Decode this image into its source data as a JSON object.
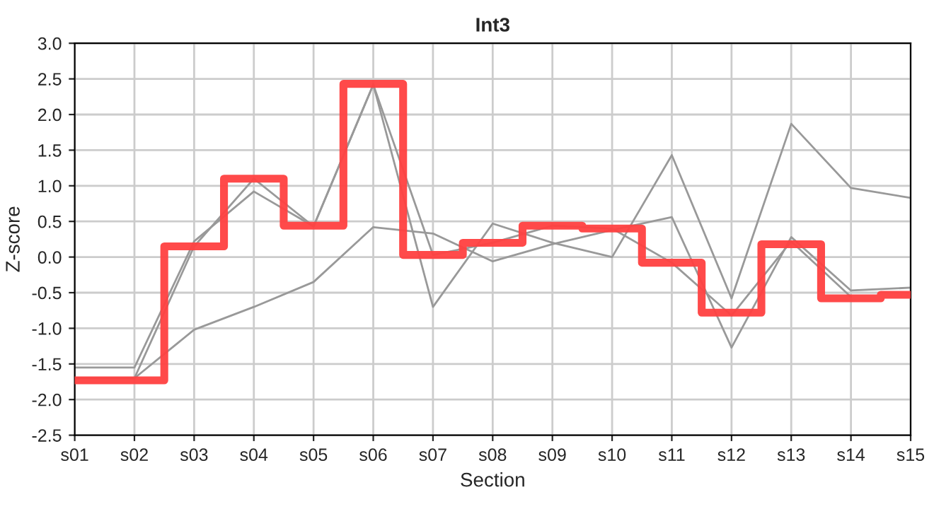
{
  "chart_data": {
    "type": "line",
    "title": "Int3",
    "xlabel": "Section",
    "ylabel": "Z-score",
    "categories": [
      "s01",
      "s02",
      "s03",
      "s04",
      "s05",
      "s06",
      "s07",
      "s08",
      "s09",
      "s10",
      "s11",
      "s12",
      "s13",
      "s14",
      "s15"
    ],
    "series": [
      {
        "color": "#999999",
        "values": [
          -1.7,
          -1.7,
          -1.02,
          -0.7,
          -0.35,
          0.42,
          0.33,
          -0.06,
          0.18,
          0.38,
          0.56,
          -1.27,
          0.28,
          -0.47,
          -0.43
        ]
      },
      {
        "color": "#999999",
        "values": [
          -1.55,
          -1.55,
          0.22,
          0.92,
          0.43,
          2.42,
          -0.7,
          0.47,
          0.2,
          0.0,
          1.43,
          -0.58,
          1.87,
          0.97,
          0.83
        ]
      },
      {
        "color": "#999999",
        "values": [
          -1.7,
          -1.7,
          0.15,
          1.1,
          0.43,
          2.42,
          0.03,
          0.2,
          0.44,
          0.4,
          -0.08,
          -0.82,
          0.22,
          -0.56,
          null
        ]
      },
      {
        "type": "step",
        "color": "#ff4040",
        "values": [
          -1.73,
          -1.73,
          0.15,
          1.1,
          0.44,
          2.43,
          0.03,
          0.2,
          0.44,
          0.4,
          -0.08,
          -0.78,
          0.18,
          -0.58,
          -0.53
        ]
      }
    ],
    "ylim": [
      -2.5,
      3.0
    ],
    "yticks": [
      {
        "value": -2.5,
        "label": "-2.5"
      },
      {
        "value": -2.0,
        "label": "-2.0"
      },
      {
        "value": -1.5,
        "label": "-1.5"
      },
      {
        "value": -1.0,
        "label": "-1.0"
      },
      {
        "value": -0.5,
        "label": "-0.5"
      },
      {
        "value": 0,
        "label": "0.0"
      },
      {
        "value": 0.5,
        "label": "0.5"
      },
      {
        "value": 1.0,
        "label": "1.0"
      },
      {
        "value": 1.5,
        "label": "1.5"
      },
      {
        "value": 2.0,
        "label": "2.0"
      },
      {
        "value": 2.5,
        "label": "2.5"
      },
      {
        "value": 3.0,
        "label": "3.0"
      }
    ],
    "grid": true,
    "legend": false
  }
}
